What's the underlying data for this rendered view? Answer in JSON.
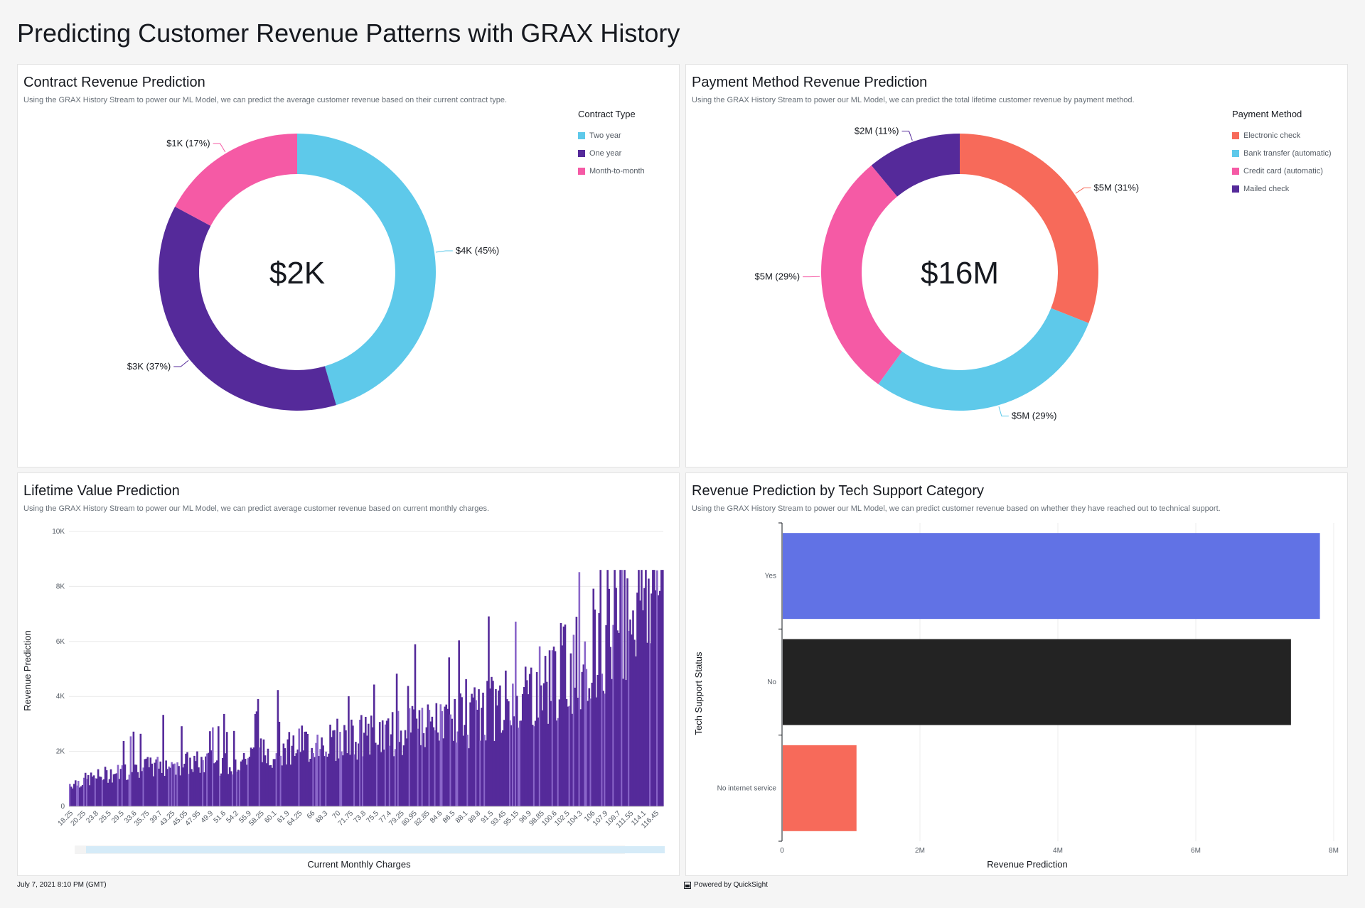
{
  "page": {
    "title": "Predicting Customer Revenue Patterns with GRAX History",
    "footer_date": "July 7, 2021 8:10 PM (GMT)",
    "powered_by": "Powered by QuickSight"
  },
  "panels": {
    "contract": {
      "title": "Contract Revenue Prediction",
      "subtitle": "Using the GRAX History Stream to power our ML Model, we can predict the average customer revenue based on their current contract type."
    },
    "payment": {
      "title": "Payment Method Revenue Prediction",
      "subtitle": "Using the GRAX History Stream to power our ML Model, we can predict the total lifetime customer revenue by payment method."
    },
    "lifetime": {
      "title": "Lifetime Value Prediction",
      "subtitle": "Using the GRAX History Stream to power our ML Model, we can predict average customer revenue based on current monthly charges."
    },
    "support": {
      "title": "Revenue Prediction by Tech Support Category",
      "subtitle": "Using the GRAX History Stream to power our ML Model, we can predict customer revenue based on whether they have reached out to technical support."
    }
  },
  "chart_data": [
    {
      "id": "contract",
      "type": "pie",
      "variant": "donut",
      "center_label": "$2K",
      "legend_title": "Contract Type",
      "legend_position": "right",
      "slices": [
        {
          "name": "Two year",
          "value": 45,
          "label": "$4K (45%)",
          "color": "#5ec9ea"
        },
        {
          "name": "One year",
          "value": 37,
          "label": "$3K (37%)",
          "color": "#552a9a"
        },
        {
          "name": "Month-to-month",
          "value": 17,
          "label": "$1K (17%)",
          "color": "#f55aa5"
        }
      ]
    },
    {
      "id": "payment",
      "type": "pie",
      "variant": "donut",
      "center_label": "$16M",
      "legend_title": "Payment Method",
      "legend_position": "right",
      "slices": [
        {
          "name": "Electronic check",
          "value": 31,
          "label": "$5M (31%)",
          "color": "#f76a5a"
        },
        {
          "name": "Bank transfer (automatic)",
          "value": 29,
          "label": "$5M (29%)",
          "color": "#5ec9ea"
        },
        {
          "name": "Credit card (automatic)",
          "value": 29,
          "label": "$5M (29%)",
          "color": "#f55aa5"
        },
        {
          "name": "Mailed check",
          "value": 11,
          "label": "$2M (11%)",
          "color": "#552a9a"
        }
      ]
    },
    {
      "id": "lifetime",
      "type": "bar",
      "xlabel": "Current Monthly Charges",
      "ylabel": "Revenue Prediction",
      "ylim": [
        0,
        10000
      ],
      "yticks": [
        "0",
        "2K",
        "4K",
        "6K",
        "8K",
        "10K"
      ],
      "xlim": [
        18.25,
        118.75
      ],
      "xticks": [
        "18.25",
        "20.25",
        "23.8",
        "25.5",
        "29.5",
        "33.6",
        "35.75",
        "39.7",
        "43.25",
        "45.05",
        "47.95",
        "49.9",
        "51.6",
        "54.2",
        "55.9",
        "58.25",
        "60.1",
        "61.9",
        "64.25",
        "66",
        "68.3",
        "70",
        "71.75",
        "73.8",
        "75.5",
        "77.4",
        "79.25",
        "80.95",
        "82.85",
        "84.6",
        "86.5",
        "88.1",
        "89.8",
        "91.5",
        "93.45",
        "95.15",
        "96.9",
        "98.85",
        "100.6",
        "102.5",
        "104.3",
        "106",
        "107.9",
        "109.7",
        "111.55",
        "114.1",
        "116.45"
      ],
      "trend": [
        {
          "x": 18.25,
          "y": 800
        },
        {
          "x": 25,
          "y": 1150
        },
        {
          "x": 35,
          "y": 1500
        },
        {
          "x": 45,
          "y": 1550
        },
        {
          "x": 55,
          "y": 2100
        },
        {
          "x": 65,
          "y": 2400
        },
        {
          "x": 75,
          "y": 2600
        },
        {
          "x": 85,
          "y": 3000
        },
        {
          "x": 95,
          "y": 3900
        },
        {
          "x": 105,
          "y": 5200
        },
        {
          "x": 110,
          "y": 6600
        },
        {
          "x": 118.75,
          "y": 8300
        }
      ],
      "color": "#552a9a",
      "scrollbar": true,
      "grid": true
    },
    {
      "id": "support",
      "type": "bar",
      "orientation": "horizontal",
      "xlabel": "Revenue Prediction",
      "ylabel": "Tech Support Status",
      "xlim": [
        0,
        8000000
      ],
      "xticks": [
        "0",
        "2M",
        "4M",
        "6M",
        "8M"
      ],
      "categories": [
        "Yes",
        "No",
        "No internet service"
      ],
      "values": [
        7800000,
        7380000,
        1080000
      ],
      "colors": [
        "#6172e5",
        "#232323",
        "#f76a5a"
      ],
      "grid": true
    }
  ]
}
